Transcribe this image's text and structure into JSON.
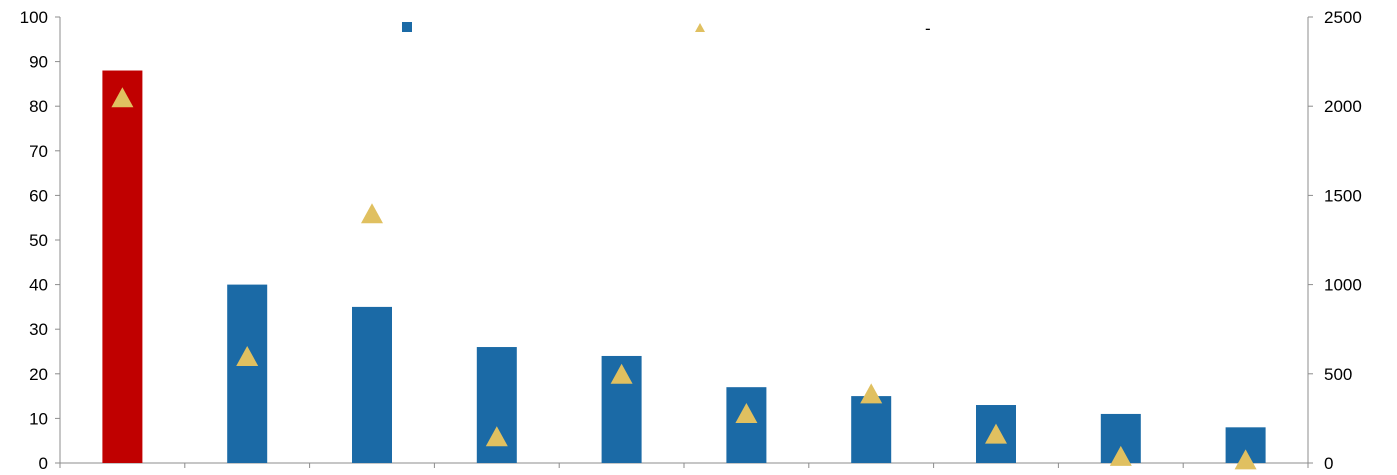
{
  "chart_data": {
    "type": "bar",
    "title": "",
    "xlabel": "",
    "ylabel": "",
    "y2label": "",
    "categories": [
      "",
      "",
      "",
      "",
      "",
      "",
      "",
      "",
      "",
      ""
    ],
    "ylim": [
      0,
      100
    ],
    "y2lim": [
      0,
      2500
    ],
    "yticks": [
      "0",
      "10",
      "20",
      "30",
      "40",
      "50",
      "60",
      "70",
      "80",
      "90",
      "100"
    ],
    "y2ticks": [
      "0",
      "500",
      "1000",
      "1500",
      "2000",
      "2500"
    ],
    "grid": false,
    "legend": "top-center",
    "series": [
      {
        "name": "",
        "axis": "left",
        "mark": "bar",
        "color": "#1B6AA6",
        "highlight_color": "#C00000",
        "highlight_index": 0,
        "values": [
          88,
          40,
          35,
          26,
          24,
          17,
          15,
          13,
          11,
          8
        ]
      },
      {
        "name": "",
        "axis": "right",
        "mark": "triangle",
        "color": "#E0C060",
        "values": [
          2050,
          600,
          1400,
          150,
          500,
          280,
          390,
          165,
          40,
          20
        ]
      }
    ],
    "legend_extra_text": "-"
  }
}
